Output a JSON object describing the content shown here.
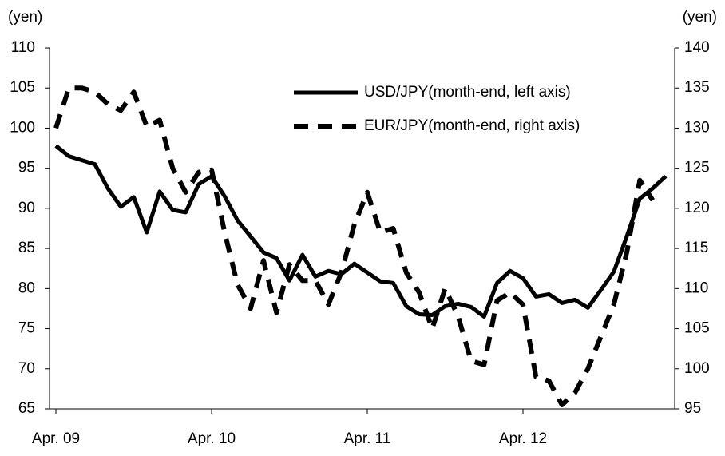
{
  "chart_data": {
    "type": "line",
    "ylabel": "(yen)",
    "y2label": "(yen)",
    "categories": [
      "Apr. 09",
      null,
      null,
      null,
      null,
      null,
      null,
      null,
      null,
      null,
      null,
      null,
      "Apr. 10",
      null,
      null,
      null,
      null,
      null,
      null,
      null,
      null,
      null,
      null,
      null,
      "Apr. 11",
      null,
      null,
      null,
      null,
      null,
      null,
      null,
      null,
      null,
      null,
      null,
      "Apr. 12",
      null,
      null,
      null,
      null,
      null,
      null,
      null,
      null,
      null,
      null,
      null
    ],
    "series": [
      {
        "name": "USD/JPY(month-end, left axis)",
        "color": "#000000",
        "dash": false,
        "axis": "y",
        "values": [
          97.8,
          96.5,
          96,
          95.5,
          92.5,
          90.2,
          91.4,
          87,
          92.1,
          89.8,
          89.5,
          93,
          94,
          91.5,
          88.5,
          86.5,
          84.5,
          83.8,
          81,
          84.2,
          81.5,
          82.2,
          81.8,
          83.1,
          82,
          80.9,
          80.7,
          77.8,
          76.8,
          76.7,
          77.8,
          78.1,
          77.7,
          76.5,
          80.7,
          82.2,
          81.3,
          79,
          79.3,
          78.2,
          78.6,
          77.6,
          79.8,
          82.1,
          86.5,
          91.2,
          92.5,
          94
        ]
      },
      {
        "name": "EUR/JPY(month-end, right axis)",
        "color": "#000000",
        "dash": true,
        "axis": "y2",
        "values": [
          130,
          135,
          135,
          134.5,
          133,
          132.2,
          134.5,
          130.2,
          131,
          125,
          122,
          124.5,
          124.8,
          117,
          110.5,
          107.5,
          113.5,
          107,
          113,
          111,
          111,
          108,
          112,
          118,
          122,
          117,
          117.5,
          112,
          109.5,
          105,
          110,
          106.5,
          101,
          100.5,
          108.5,
          109.5,
          108,
          99,
          98.5,
          95.5,
          97,
          100,
          104,
          108,
          114.5,
          123.5,
          121,
          null
        ]
      }
    ],
    "ylim": [
      65,
      110
    ],
    "yticks": [
      65,
      70,
      75,
      80,
      85,
      90,
      95,
      100,
      105,
      110
    ],
    "y2lim": [
      95,
      140
    ],
    "y2ticks": [
      95,
      100,
      105,
      110,
      115,
      120,
      125,
      130,
      135,
      140
    ]
  }
}
